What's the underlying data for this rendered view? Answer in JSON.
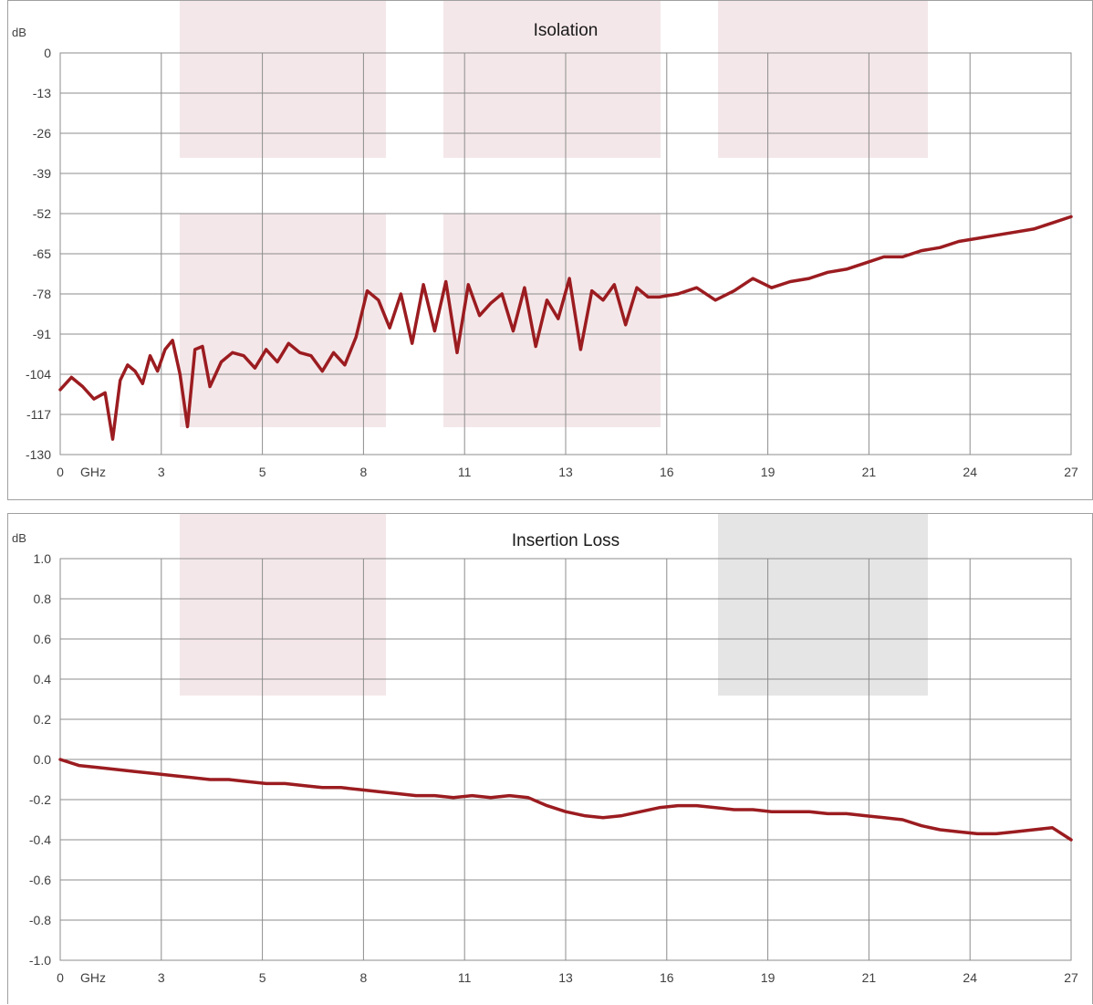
{
  "chart_data": [
    {
      "type": "line",
      "title": "Isolation",
      "ylabel": "dB",
      "xunit": "GHz",
      "x_tick_labels": [
        "0",
        "3",
        "5",
        "8",
        "11",
        "13",
        "16",
        "19",
        "21",
        "24",
        "27"
      ],
      "y_tick_labels": [
        "0",
        "-13",
        "-26",
        "-39",
        "-52",
        "-65",
        "-78",
        "-91",
        "-104",
        "-117",
        "-130"
      ],
      "ylim": [
        -130,
        0
      ],
      "xlim": [
        0,
        27
      ],
      "grid": true,
      "series_color": "#9b1c20",
      "series": [
        {
          "x": [
            0,
            0.3,
            0.6,
            0.9,
            1.2,
            1.4,
            1.6,
            1.8,
            2.0,
            2.2,
            2.4,
            2.6,
            2.8,
            3.0,
            3.2,
            3.4,
            3.6,
            3.8,
            4.0,
            4.3,
            4.6,
            4.9,
            5.2,
            5.5,
            5.8,
            6.1,
            6.4,
            6.7,
            7.0,
            7.3,
            7.6,
            7.9,
            8.2,
            8.5,
            8.8,
            9.1,
            9.4,
            9.7,
            10.0,
            10.3,
            10.6,
            10.9,
            11.2,
            11.5,
            11.8,
            12.1,
            12.4,
            12.7,
            13.0,
            13.3,
            13.6,
            13.9,
            14.2,
            14.5,
            14.8,
            15.1,
            15.4,
            15.7,
            16.0,
            16.5,
            17.0,
            17.5,
            18.0,
            18.5,
            19.0,
            19.5,
            20.0,
            20.5,
            21.0,
            21.5,
            22.0,
            22.5,
            23.0,
            23.5,
            24.0,
            24.5,
            25.0,
            25.5,
            26.0,
            26.5,
            27.0
          ],
          "y": [
            -109,
            -105,
            -108,
            -112,
            -110,
            -125,
            -106,
            -101,
            -103,
            -107,
            -98,
            -103,
            -96,
            -93,
            -104,
            -121,
            -96,
            -95,
            -108,
            -100,
            -97,
            -98,
            -102,
            -96,
            -100,
            -94,
            -97,
            -98,
            -103,
            -97,
            -101,
            -92,
            -77,
            -80,
            -89,
            -78,
            -94,
            -75,
            -90,
            -74,
            -97,
            -75,
            -85,
            -81,
            -78,
            -90,
            -76,
            -95,
            -80,
            -86,
            -73,
            -96,
            -77,
            -80,
            -75,
            -88,
            -76,
            -79,
            -79,
            -78,
            -76,
            -80,
            -77,
            -73,
            -76,
            -74,
            -73,
            -71,
            -70,
            -68,
            -66,
            -66,
            -64,
            -63,
            -61,
            -60,
            -59,
            -58,
            -57,
            -55,
            -53
          ]
        }
      ]
    },
    {
      "type": "line",
      "title": "Insertion Loss",
      "ylabel": "dB",
      "xunit": "GHz",
      "x_tick_labels": [
        "0",
        "3",
        "5",
        "8",
        "11",
        "13",
        "16",
        "19",
        "21",
        "24",
        "27"
      ],
      "y_tick_labels": [
        "1.0",
        "0.8",
        "0.6",
        "0.4",
        "0.2",
        "0.0",
        "-0.2",
        "-0.4",
        "-0.6",
        "-0.8",
        "-1.0"
      ],
      "ylim": [
        -1.0,
        1.0
      ],
      "xlim": [
        0,
        27
      ],
      "grid": true,
      "series_color": "#9b1c20",
      "series": [
        {
          "x": [
            0,
            0.5,
            1.0,
            1.5,
            2.0,
            2.5,
            3.0,
            3.5,
            4.0,
            4.5,
            5.0,
            5.5,
            6.0,
            6.5,
            7.0,
            7.5,
            8.0,
            8.5,
            9.0,
            9.5,
            10.0,
            10.5,
            11.0,
            11.5,
            12.0,
            12.5,
            13.0,
            13.5,
            14.0,
            14.5,
            15.0,
            15.5,
            16.0,
            16.5,
            17.0,
            17.5,
            18.0,
            18.5,
            19.0,
            19.5,
            20.0,
            20.5,
            21.0,
            21.5,
            22.0,
            22.5,
            23.0,
            23.5,
            24.0,
            24.5,
            25.0,
            25.5,
            26.0,
            26.5,
            27.0
          ],
          "y": [
            0,
            -0.03,
            -0.04,
            -0.05,
            -0.06,
            -0.07,
            -0.08,
            -0.09,
            -0.1,
            -0.1,
            -0.11,
            -0.12,
            -0.12,
            -0.13,
            -0.14,
            -0.14,
            -0.15,
            -0.16,
            -0.17,
            -0.18,
            -0.18,
            -0.19,
            -0.18,
            -0.19,
            -0.18,
            -0.19,
            -0.23,
            -0.26,
            -0.28,
            -0.29,
            -0.28,
            -0.26,
            -0.24,
            -0.23,
            -0.23,
            -0.24,
            -0.25,
            -0.25,
            -0.26,
            -0.26,
            -0.26,
            -0.27,
            -0.27,
            -0.28,
            -0.29,
            -0.3,
            -0.33,
            -0.35,
            -0.36,
            -0.37,
            -0.37,
            -0.36,
            -0.35,
            -0.34,
            -0.4
          ]
        }
      ]
    }
  ]
}
